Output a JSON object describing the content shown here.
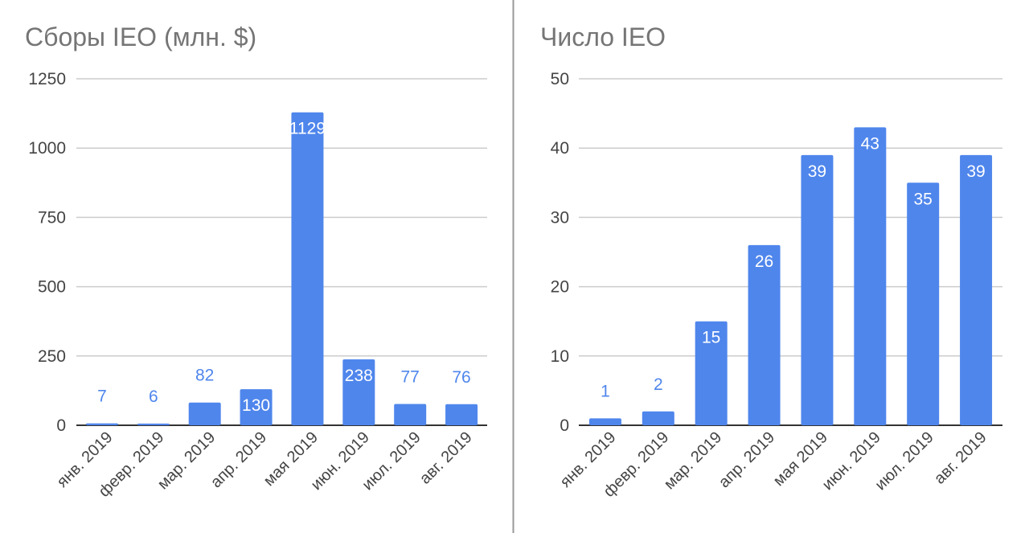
{
  "colors": {
    "bar": "#4F86EC",
    "label_outside": "#4F86EC",
    "label_inside": "#ffffff",
    "grid": "#cccccc",
    "baseline": "#333333",
    "divider": "#999999",
    "title": "#757575",
    "tick": "#444444"
  },
  "chart_data": [
    {
      "type": "bar",
      "title": "Сборы IEO (млн. $)",
      "categories": [
        "янв. 2019",
        "февр. 2019",
        "мар. 2019",
        "апр. 2019",
        "мая 2019",
        "июн. 2019",
        "июл. 2019",
        "авг. 2019"
      ],
      "series": [
        {
          "values": [
            7,
            6,
            82,
            130,
            1129,
            238,
            77,
            76
          ]
        }
      ],
      "value_labels": [
        "7",
        "6",
        "82",
        "130",
        "1129",
        "238",
        "77",
        "76"
      ],
      "yticks": [
        0,
        250,
        500,
        750,
        1000,
        1250
      ],
      "ytick_labels": [
        "0",
        "250",
        "500",
        "750",
        "1000",
        "1250"
      ],
      "ylim": [
        0,
        1250
      ],
      "xlabel": "",
      "ylabel": "",
      "grid": true,
      "legend": "none"
    },
    {
      "type": "bar",
      "title": "Число IEO",
      "categories": [
        "янв. 2019",
        "февр. 2019",
        "мар. 2019",
        "апр. 2019",
        "мая 2019",
        "июн. 2019",
        "июл. 2019",
        "авг. 2019"
      ],
      "series": [
        {
          "values": [
            1,
            2,
            15,
            26,
            39,
            43,
            35,
            39
          ]
        }
      ],
      "value_labels": [
        "1",
        "2",
        "15",
        "26",
        "39",
        "43",
        "35",
        "39"
      ],
      "yticks": [
        0,
        10,
        20,
        30,
        40,
        50
      ],
      "ytick_labels": [
        "0",
        "10",
        "20",
        "30",
        "40",
        "50"
      ],
      "ylim": [
        0,
        50
      ],
      "xlabel": "",
      "ylabel": "",
      "grid": true,
      "legend": "none"
    }
  ]
}
